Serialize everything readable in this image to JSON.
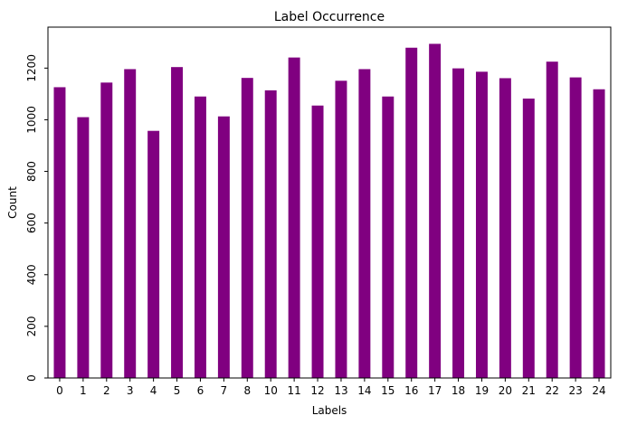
{
  "colors": {
    "bar": "#800080",
    "axis": "#000000",
    "background": "#ffffff"
  },
  "chart_data": {
    "type": "bar",
    "title": "Label Occurrence",
    "xlabel": "Labels",
    "ylabel": "Count",
    "categories": [
      "0",
      "1",
      "2",
      "3",
      "4",
      "5",
      "6",
      "7",
      "8",
      "10",
      "11",
      "12",
      "13",
      "14",
      "15",
      "16",
      "17",
      "18",
      "19",
      "20",
      "21",
      "22",
      "23",
      "24"
    ],
    "values": [
      1126,
      1010,
      1144,
      1196,
      957,
      1204,
      1090,
      1013,
      1162,
      1114,
      1241,
      1055,
      1151,
      1196,
      1090,
      1279,
      1294,
      1199,
      1186,
      1161,
      1082,
      1225,
      1164,
      1118
    ],
    "yticks": [
      0,
      200,
      400,
      600,
      800,
      1000,
      1200
    ],
    "ylim": [
      0,
      1358.7
    ],
    "grid": false,
    "legend": "none"
  }
}
